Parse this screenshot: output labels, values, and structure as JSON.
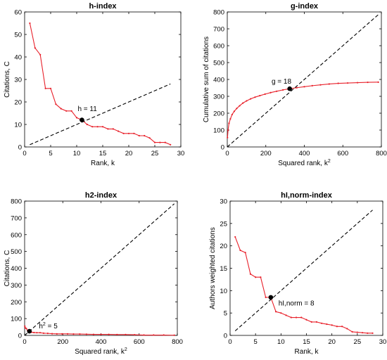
{
  "chart_data": [
    {
      "type": "line",
      "title": "h-index",
      "xlabel": "Rank, k",
      "ylabel": "Citations, C",
      "xlim": [
        0,
        30
      ],
      "ylim": [
        0,
        60
      ],
      "xticks": [
        "0",
        "5",
        "10",
        "15",
        "20",
        "25",
        "30"
      ],
      "yticks": [
        "0",
        "10",
        "20",
        "30",
        "40",
        "50",
        "60"
      ],
      "grid": false,
      "series": [
        {
          "style": "red-solid-dots",
          "x": [
            1,
            2,
            3,
            4,
            5,
            6,
            7,
            8,
            9,
            10,
            11,
            12,
            13,
            14,
            15,
            16,
            17,
            18,
            19,
            20,
            21,
            22,
            23,
            24,
            25,
            26,
            27,
            28
          ],
          "y": [
            55,
            44,
            41,
            26,
            26,
            19,
            17,
            16,
            16,
            13,
            12,
            10,
            9,
            9,
            9,
            8,
            8,
            7,
            6,
            6,
            6,
            5,
            5,
            4,
            2,
            2,
            2,
            1
          ]
        },
        {
          "style": "black-dashed",
          "x": [
            1,
            28
          ],
          "y": [
            1,
            28
          ]
        }
      ],
      "marker": {
        "x": 11,
        "y": 12
      },
      "annotation": {
        "text": "h = 11",
        "x": 10.2,
        "y": 16
      }
    },
    {
      "type": "line",
      "title": "g-index",
      "xlabel": "Squared rank, k",
      "xlabel_sup": "2",
      "ylabel": "Cumulative sum of citations",
      "xlim": [
        0,
        800
      ],
      "ylim": [
        0,
        800
      ],
      "xticks": [
        "0",
        "200",
        "400",
        "600",
        "800"
      ],
      "yticks": [
        "0",
        "100",
        "200",
        "300",
        "400",
        "500",
        "600",
        "700",
        "800"
      ],
      "grid": false,
      "series": [
        {
          "style": "red-solid-dots",
          "x": [
            1,
            4,
            9,
            16,
            25,
            36,
            49,
            64,
            81,
            100,
            121,
            144,
            169,
            196,
            225,
            256,
            289,
            324,
            361,
            400,
            441,
            484,
            529,
            576,
            625,
            676,
            729,
            784
          ],
          "y": [
            55,
            99,
            140,
            166,
            192,
            211,
            228,
            244,
            260,
            273,
            285,
            295,
            304,
            313,
            322,
            330,
            338,
            345,
            351,
            357,
            363,
            368,
            373,
            377,
            379,
            381,
            383,
            384
          ]
        },
        {
          "style": "black-dashed",
          "x": [
            0,
            784
          ],
          "y": [
            0,
            784
          ]
        }
      ],
      "marker": {
        "x": 324,
        "y": 345
      },
      "annotation": {
        "text": "g = 18",
        "x": 230,
        "y": 375
      }
    },
    {
      "type": "line",
      "title": "h2-index",
      "xlabel": "Squared rank, k",
      "xlabel_sup": "2",
      "ylabel": "Citations, C",
      "xlim": [
        0,
        800
      ],
      "ylim": [
        0,
        800
      ],
      "xticks": [
        "0",
        "200",
        "400",
        "600",
        "800"
      ],
      "yticks": [
        "0",
        "100",
        "200",
        "300",
        "400",
        "500",
        "600",
        "700",
        "800"
      ],
      "grid": false,
      "series": [
        {
          "style": "red-solid-dots",
          "x": [
            1,
            4,
            9,
            16,
            25,
            36,
            49,
            64,
            81,
            100,
            121,
            144,
            169,
            196,
            225,
            256,
            289,
            324,
            361,
            400,
            441,
            484,
            529,
            576,
            625,
            676,
            729,
            784
          ],
          "y": [
            55,
            44,
            41,
            26,
            26,
            19,
            17,
            16,
            16,
            13,
            12,
            10,
            9,
            9,
            9,
            8,
            8,
            7,
            6,
            6,
            6,
            5,
            5,
            4,
            2,
            2,
            2,
            1
          ]
        },
        {
          "style": "black-dashed",
          "x": [
            0,
            784
          ],
          "y": [
            0,
            784
          ]
        }
      ],
      "marker": {
        "x": 25,
        "y": 25
      },
      "annotation": {
        "text": "h",
        "sup": "2",
        "suffix": " = 5",
        "x": 75,
        "y": 42
      }
    },
    {
      "type": "line",
      "title": "hI,norm-index",
      "xlabel": "Rank, k",
      "ylabel": "Authors weighted citations",
      "xlim": [
        0,
        30
      ],
      "ylim": [
        0,
        30
      ],
      "xticks": [
        "0",
        "5",
        "10",
        "15",
        "20",
        "25",
        "30"
      ],
      "yticks": [
        "0",
        "5",
        "10",
        "15",
        "20",
        "25",
        "30"
      ],
      "grid": false,
      "series": [
        {
          "style": "red-solid-dots",
          "x": [
            1,
            2,
            3,
            4,
            5,
            6,
            7,
            8,
            9,
            10,
            11,
            12,
            13,
            14,
            15,
            16,
            17,
            18,
            19,
            20,
            21,
            22,
            23,
            24,
            25,
            26,
            27,
            28
          ],
          "y": [
            22,
            19,
            18.5,
            13.7,
            13,
            13,
            8.5,
            8.5,
            5.3,
            5,
            4.5,
            4,
            4,
            4,
            3.5,
            3,
            3,
            2.7,
            2.5,
            2.3,
            2,
            2,
            1.5,
            0.8,
            0.7,
            0.6,
            0.5,
            0.5
          ]
        },
        {
          "style": "black-dashed",
          "x": [
            1,
            28
          ],
          "y": [
            1,
            28
          ]
        }
      ],
      "marker": {
        "x": 8,
        "y": 8.5
      },
      "annotation": {
        "text": "hI,norm = 8",
        "x": 9.5,
        "y": 6.7
      }
    }
  ]
}
